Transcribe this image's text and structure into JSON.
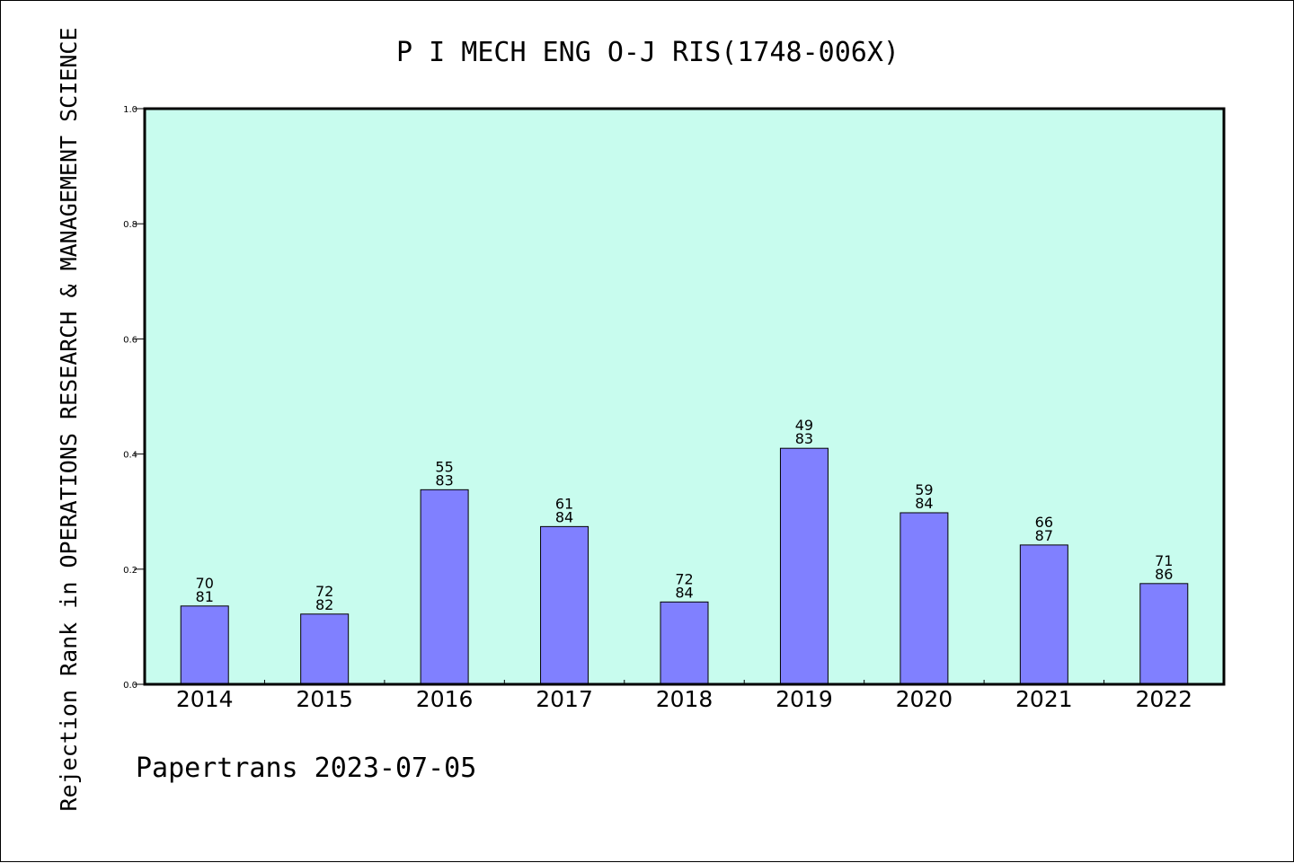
{
  "chart_data": {
    "type": "bar",
    "title": "P I MECH ENG O-J RIS(1748-006X)",
    "ylabel": "Rejection Rank in OPERATIONS RESEARCH & MANAGEMENT SCIENCE",
    "xlabel": "",
    "ylim": [
      0,
      1.0
    ],
    "yticks": [
      "0.0",
      "0.2",
      "0.4",
      "0.6",
      "0.8",
      "1.0"
    ],
    "categories": [
      "2014",
      "2015",
      "2016",
      "2017",
      "2018",
      "2019",
      "2020",
      "2021",
      "2022"
    ],
    "values": [
      0.136,
      0.122,
      0.338,
      0.274,
      0.143,
      0.41,
      0.298,
      0.242,
      0.175
    ],
    "labels_top": [
      "70",
      "72",
      "55",
      "61",
      "72",
      "49",
      "59",
      "66",
      "71"
    ],
    "labels_bottom": [
      "81",
      "82",
      "83",
      "84",
      "84",
      "83",
      "84",
      "87",
      "86"
    ],
    "grid": false,
    "footer": "Papertrans 2023-07-05",
    "colors": {
      "plot_background": "#c8fcee",
      "bar_fill": "#8080ff",
      "bar_stroke": "#000000",
      "axis": "#000000"
    }
  }
}
